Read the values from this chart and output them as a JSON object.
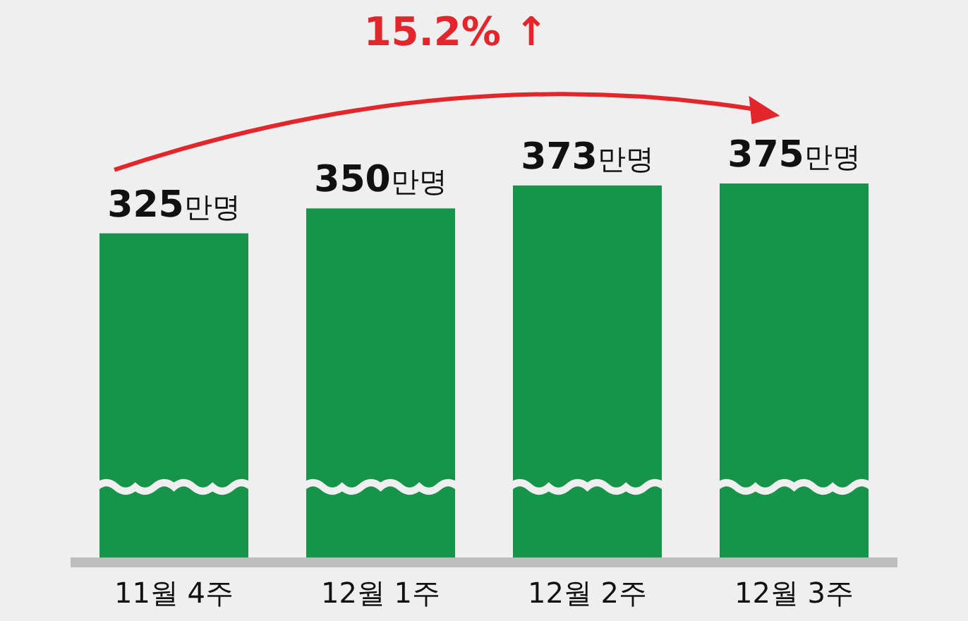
{
  "chart_data": {
    "type": "bar",
    "categories": [
      "11월 4주",
      "12월 1주",
      "12월 2주",
      "12월 3주"
    ],
    "values": [
      325,
      350,
      373,
      375
    ],
    "value_labels": [
      "325만명",
      "350만명",
      "373만명",
      "375만명"
    ],
    "color": "#16944a",
    "annotations": [
      "15.2% ↑"
    ]
  }
}
